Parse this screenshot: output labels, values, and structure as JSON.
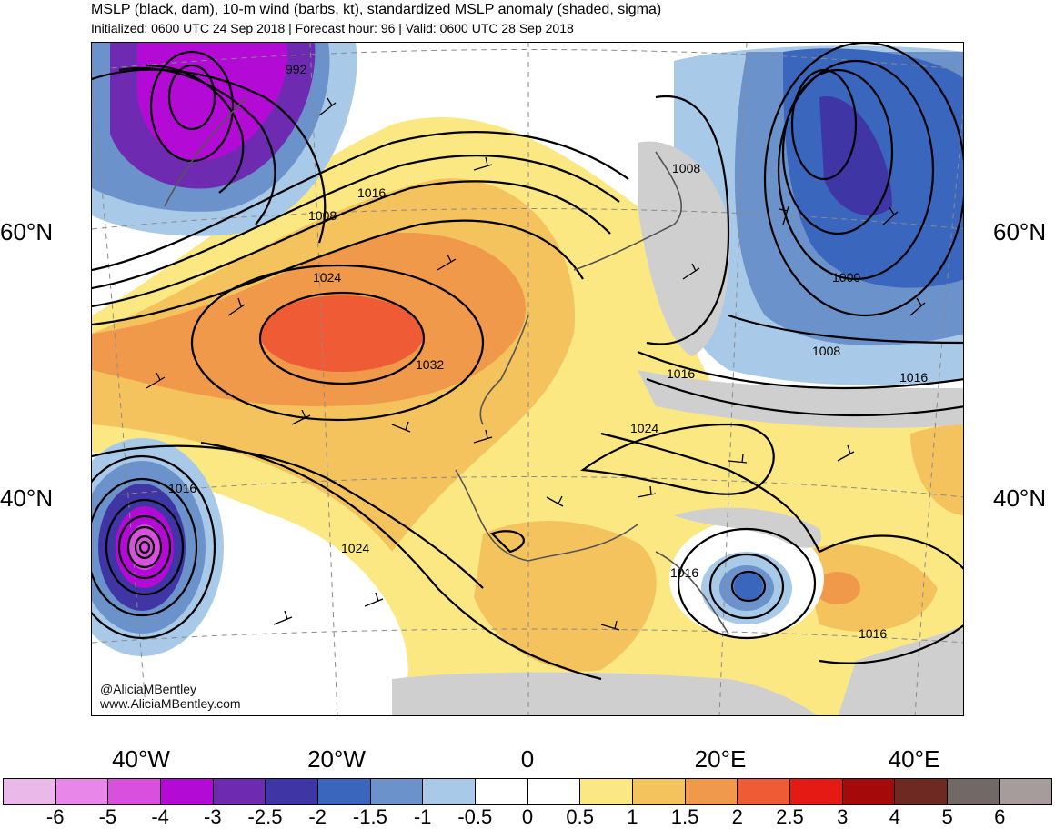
{
  "header": {
    "title": "MSLP (black, dam), 10-m wind (barbs, kt), standardized MSLP anomaly (shaded, sigma)",
    "subtitle": "Initialized: 0600 UTC 24 Sep 2018 | Forecast hour: 96 | Valid: 0600 UTC 28 Sep 2018"
  },
  "map": {
    "lat_labels": [
      "60°N",
      "40°N"
    ],
    "lon_labels": [
      "40°W",
      "20°W",
      "0",
      "20°E",
      "40°E"
    ],
    "contour_labels": [
      "992",
      "1016",
      "1008",
      "1024",
      "1032",
      "1016",
      "1024",
      "1008",
      "1000",
      "1008",
      "1016",
      "1016",
      "1024",
      "1016",
      "1016"
    ],
    "credits": [
      "@AliciaMBentley",
      "www.AliciaMBentley.com"
    ]
  },
  "colorbar": {
    "colors": [
      "#ebb8ea",
      "#e886e9",
      "#d94fde",
      "#b30ad6",
      "#6f2ab2",
      "#4035a4",
      "#3a66bd",
      "#6c92cb",
      "#a8c9e7",
      "#ffffff",
      "#ffffff",
      "#fbe883",
      "#f4c35e",
      "#f1994a",
      "#ef5b35",
      "#e61a15",
      "#a60909",
      "#6e2a22",
      "#726866",
      "#a59c9b"
    ],
    "labels": [
      "-6",
      "-5",
      "-4",
      "-3",
      "-2.5",
      "-2",
      "-1.5",
      "-1",
      "-0.5",
      "0",
      "0.5",
      "1",
      "1.5",
      "2",
      "2.5",
      "3",
      "4",
      "5",
      "6"
    ]
  }
}
